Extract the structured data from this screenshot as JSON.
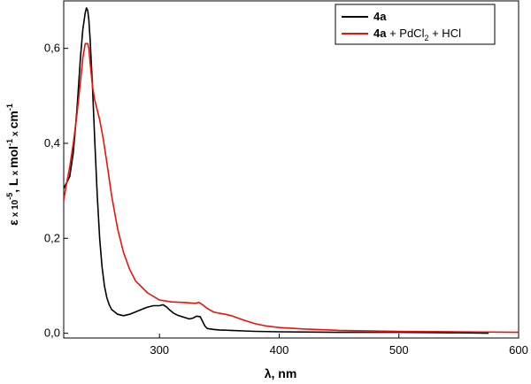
{
  "chart_data": {
    "type": "line",
    "xlabel": {
      "main": "λ, nm"
    },
    "ylabel": {
      "a": "ε",
      "b": "x 10",
      "c": "-5",
      "d": ", L",
      "e": "x",
      "f": "mol",
      "g": "-1",
      "h": "x",
      "i": "cm",
      "j": "-1"
    },
    "xlim": [
      220,
      600
    ],
    "ylim": [
      -0.01,
      0.7
    ],
    "xticks": [
      300,
      400,
      500,
      600
    ],
    "yticks": [
      0.0,
      0.2,
      0.4,
      0.6
    ],
    "ytick_labels": [
      "0,0",
      "0,2",
      "0,4",
      "0,6"
    ],
    "grid": false,
    "legend_position": "top-right",
    "series": [
      {
        "name": "4a",
        "name_parts": {
          "bold": "4a",
          "rest": "",
          "sub": "",
          "tail": ""
        },
        "color": "#000000",
        "x": [
          220,
          225,
          228,
          231,
          234,
          236,
          238,
          239,
          240,
          241,
          242,
          244,
          246,
          248,
          250,
          252,
          254,
          256,
          258,
          260,
          265,
          270,
          275,
          280,
          285,
          290,
          295,
          300,
          303,
          306,
          309,
          312,
          315,
          320,
          325,
          328,
          331,
          334,
          336,
          338,
          340,
          345,
          350,
          360,
          370,
          380,
          400,
          450,
          500,
          550,
          575
        ],
        "y": [
          0.305,
          0.33,
          0.38,
          0.47,
          0.58,
          0.64,
          0.675,
          0.685,
          0.68,
          0.66,
          0.62,
          0.52,
          0.4,
          0.29,
          0.2,
          0.14,
          0.1,
          0.075,
          0.06,
          0.05,
          0.04,
          0.037,
          0.04,
          0.045,
          0.05,
          0.055,
          0.058,
          0.058,
          0.06,
          0.055,
          0.048,
          0.042,
          0.038,
          0.034,
          0.03,
          0.032,
          0.036,
          0.035,
          0.025,
          0.015,
          0.01,
          0.008,
          0.007,
          0.006,
          0.005,
          0.004,
          0.003,
          0.002,
          0.002,
          0.001,
          0.0
        ]
      },
      {
        "name": "4a + PdCl2 + HCl",
        "name_parts": {
          "bold": "4a",
          "rest": " + PdCl",
          "sub": "2",
          "tail": " + HCl"
        },
        "color": "#e8140c",
        "x": [
          220,
          222,
          225,
          228,
          231,
          234,
          236,
          238,
          240,
          241,
          242,
          244,
          246,
          248,
          250,
          253,
          256,
          260,
          265,
          270,
          275,
          280,
          290,
          300,
          310,
          320,
          325,
          330,
          333,
          336,
          340,
          345,
          350,
          355,
          360,
          370,
          380,
          390,
          400,
          420,
          450,
          500,
          550,
          600
        ],
        "y": [
          0.28,
          0.31,
          0.35,
          0.4,
          0.46,
          0.53,
          0.58,
          0.61,
          0.61,
          0.6,
          0.57,
          0.52,
          0.49,
          0.47,
          0.45,
          0.41,
          0.36,
          0.29,
          0.22,
          0.17,
          0.135,
          0.11,
          0.085,
          0.07,
          0.066,
          0.065,
          0.064,
          0.063,
          0.065,
          0.06,
          0.052,
          0.045,
          0.042,
          0.04,
          0.037,
          0.028,
          0.02,
          0.015,
          0.012,
          0.009,
          0.006,
          0.004,
          0.003,
          0.002
        ]
      }
    ]
  }
}
